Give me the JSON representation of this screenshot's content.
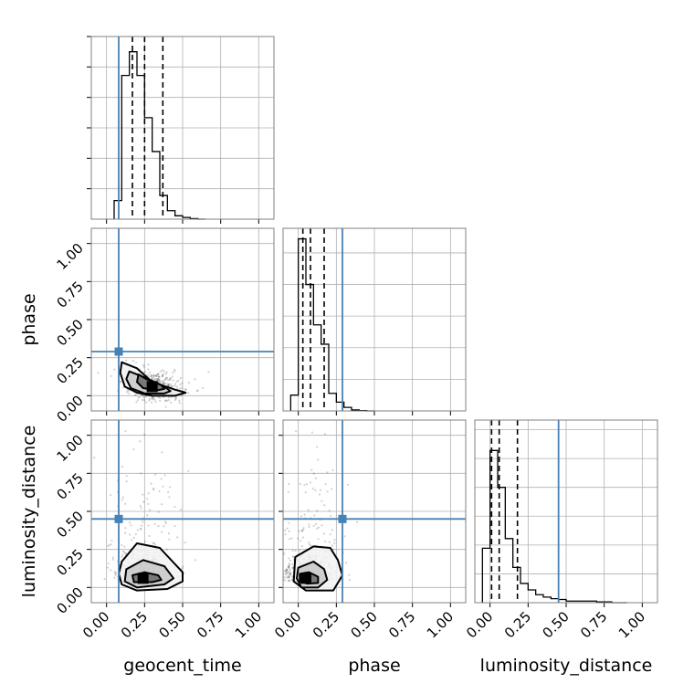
{
  "chart_data": {
    "type": "corner",
    "parameters": [
      "geocent_time",
      "phase",
      "luminosity_distance"
    ],
    "axis_range": [
      -0.1,
      1.1
    ],
    "ticks": [
      0.0,
      0.25,
      0.5,
      0.75,
      1.0
    ],
    "tick_labels": [
      "0.00",
      "0.25",
      "0.50",
      "0.75",
      "1.00"
    ],
    "grid": true,
    "colors": {
      "truth": "#4682b4",
      "histogram": "#000000",
      "quantile": "#000000"
    },
    "truths": {
      "geocent_time": 0.08,
      "phase": 0.29,
      "luminosity_distance": 0.45
    },
    "quantiles": {
      "geocent_time": [
        0.17,
        0.25,
        0.37
      ],
      "phase": [
        0.03,
        0.08,
        0.17
      ],
      "luminosity_distance": [
        0.01,
        0.06,
        0.18
      ]
    },
    "histograms": {
      "geocent_time": {
        "bin_edges": [
          0.05,
          0.1,
          0.15,
          0.2,
          0.25,
          0.3,
          0.35,
          0.4,
          0.45,
          0.5,
          0.55,
          0.6,
          0.65
        ],
        "counts": [
          0.11,
          0.85,
          0.99,
          0.85,
          0.6,
          0.4,
          0.14,
          0.05,
          0.02,
          0.01,
          0.003,
          0.0
        ],
        "y_max": 1.08
      },
      "phase": {
        "bin_edges": [
          -0.05,
          0.0,
          0.05,
          0.1,
          0.15,
          0.2,
          0.25,
          0.3,
          0.35,
          0.4,
          0.45,
          0.5
        ],
        "counts": [
          0.09,
          0.98,
          0.72,
          0.49,
          0.38,
          0.1,
          0.05,
          0.02,
          0.006,
          0.002,
          0.0
        ],
        "y_max": 1.04
      },
      "luminosity_distance": {
        "bin_edges": [
          -0.05,
          0.0,
          0.05,
          0.1,
          0.15,
          0.2,
          0.25,
          0.3,
          0.35,
          0.4,
          0.45,
          0.5,
          0.6,
          0.7,
          0.8,
          0.9
        ],
        "counts": [
          0.34,
          0.95,
          0.72,
          0.4,
          0.22,
          0.12,
          0.08,
          0.05,
          0.035,
          0.025,
          0.02,
          0.01,
          0.01,
          0.005,
          0.0
        ],
        "y_max": 1.14
      }
    },
    "pairs": [
      {
        "x": "geocent_time",
        "y": "phase",
        "truth": [
          0.08,
          0.29
        ],
        "peak": [
          0.3,
          0.06
        ],
        "contour_levels": [
          [
            [
              0.1,
              0.22
            ],
            [
              0.2,
              0.18
            ],
            [
              0.3,
              0.09
            ],
            [
              0.45,
              0.04
            ],
            [
              0.52,
              0.02
            ],
            [
              0.45,
              0.0
            ],
            [
              0.3,
              0.0
            ],
            [
              0.2,
              0.02
            ],
            [
              0.12,
              0.06
            ],
            [
              0.09,
              0.15
            ]
          ],
          [
            [
              0.15,
              0.16
            ],
            [
              0.25,
              0.12
            ],
            [
              0.38,
              0.06
            ],
            [
              0.42,
              0.03
            ],
            [
              0.38,
              0.015
            ],
            [
              0.25,
              0.015
            ],
            [
              0.16,
              0.05
            ],
            [
              0.13,
              0.11
            ]
          ],
          [
            [
              0.21,
              0.14
            ],
            [
              0.26,
              0.11
            ],
            [
              0.36,
              0.07
            ],
            [
              0.38,
              0.045
            ],
            [
              0.33,
              0.035
            ],
            [
              0.24,
              0.05
            ],
            [
              0.2,
              0.09
            ]
          ]
        ]
      },
      {
        "x": "geocent_time",
        "y": "luminosity_distance",
        "truth": [
          0.08,
          0.45
        ],
        "peak": [
          0.24,
          0.06
        ],
        "contour_levels": [
          [
            [
              0.1,
              0.17
            ],
            [
              0.2,
              0.29
            ],
            [
              0.35,
              0.26
            ],
            [
              0.5,
              0.1
            ],
            [
              0.5,
              0.04
            ],
            [
              0.4,
              -0.01
            ],
            [
              0.2,
              -0.02
            ],
            [
              0.1,
              0.02
            ],
            [
              0.08,
              0.09
            ]
          ],
          [
            [
              0.13,
              0.12
            ],
            [
              0.24,
              0.18
            ],
            [
              0.38,
              0.14
            ],
            [
              0.44,
              0.06
            ],
            [
              0.38,
              0.02
            ],
            [
              0.2,
              0.0
            ],
            [
              0.12,
              0.04
            ]
          ],
          [
            [
              0.17,
              0.08
            ],
            [
              0.25,
              0.1
            ],
            [
              0.34,
              0.08
            ],
            [
              0.36,
              0.05
            ],
            [
              0.3,
              0.035
            ],
            [
              0.18,
              0.035
            ]
          ]
        ]
      },
      {
        "x": "phase",
        "y": "luminosity_distance",
        "truth": [
          0.29,
          0.45
        ],
        "peak": [
          0.05,
          0.06
        ],
        "contour_levels": [
          [
            [
              -0.02,
              0.2
            ],
            [
              0.1,
              0.27
            ],
            [
              0.21,
              0.26
            ],
            [
              0.26,
              0.18
            ],
            [
              0.29,
              0.08
            ],
            [
              0.23,
              -0.02
            ],
            [
              0.05,
              -0.02
            ],
            [
              -0.03,
              0.04
            ]
          ],
          [
            [
              0.0,
              0.13
            ],
            [
              0.1,
              0.17
            ],
            [
              0.17,
              0.12
            ],
            [
              0.19,
              0.05
            ],
            [
              0.13,
              0.0
            ],
            [
              0.02,
              0.0
            ],
            [
              -0.01,
              0.06
            ]
          ],
          [
            [
              0.01,
              0.09
            ],
            [
              0.07,
              0.1
            ],
            [
              0.13,
              0.07
            ],
            [
              0.13,
              0.03
            ],
            [
              0.06,
              0.025
            ],
            [
              0.01,
              0.04
            ]
          ]
        ]
      }
    ]
  }
}
